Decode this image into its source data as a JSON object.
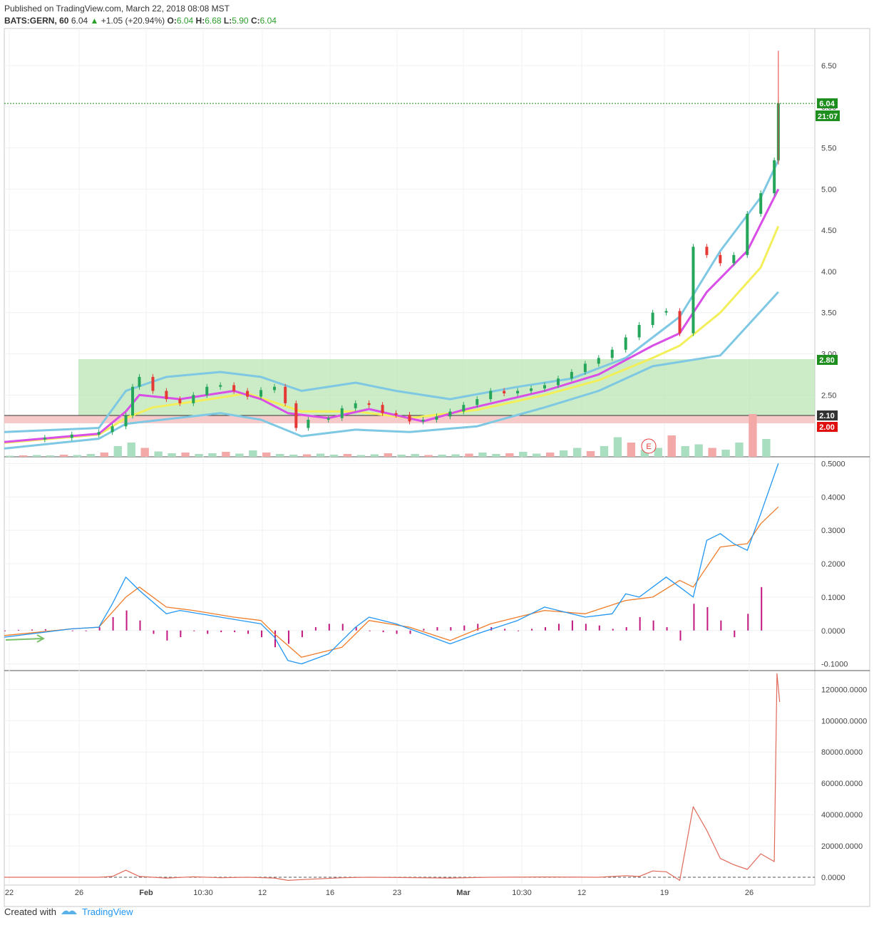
{
  "header": {
    "published": "Published on TradingView.com, March 22, 2018 08:08 MST",
    "symbol": "BATS:GERN, 60",
    "last": "6.04",
    "change_arrow": "▲",
    "change": "+1.05 (+20.94%)",
    "o_label": "O:",
    "o": "6.04",
    "h_label": "H:",
    "h": "6.68",
    "l_label": "L:",
    "l": "5.90",
    "c_label": "C:",
    "c": "6.04"
  },
  "footer": {
    "created_with": "Created with",
    "brand": "TradingView"
  },
  "colors": {
    "up": "#26a65b",
    "down": "#e53935",
    "band": "#7ec8e3",
    "ema_fast": "#d84ee6",
    "ema_slow": "#f2ef5a",
    "zone_green": "#b9e6b4",
    "zone_red": "#f6c1c1",
    "macd": "#2196f3",
    "signal": "#f07c2a",
    "hist": "#c2187f",
    "obv": "#e06a5a"
  },
  "chart_data": [
    {
      "type": "line",
      "name": "price",
      "x_ticks": [
        "22",
        "26",
        "Feb",
        "10:30",
        "12",
        "16",
        "23",
        "Mar",
        "10:30",
        "12",
        "19",
        "26"
      ],
      "y_ticks": [
        "6.50",
        "6.00",
        "5.50",
        "5.00",
        "4.50",
        "4.00",
        "3.50",
        "3.00",
        "2.50"
      ],
      "ylim": [
        1.75,
        6.95
      ],
      "last_price": "6.04",
      "countdown": "21:07",
      "zone_top": "2.80",
      "zone_mid": "2.10",
      "zone_bottom": "2.00",
      "earnings_marker": "E",
      "close_path": [
        [
          0,
          1.96
        ],
        [
          3,
          1.98
        ],
        [
          5,
          2.02
        ],
        [
          7,
          2.05
        ],
        [
          8,
          2.12
        ],
        [
          9,
          2.25
        ],
        [
          9.5,
          2.6
        ],
        [
          10,
          2.72
        ],
        [
          11,
          2.55
        ],
        [
          12,
          2.45
        ],
        [
          13,
          2.4
        ],
        [
          14,
          2.5
        ],
        [
          15,
          2.6
        ],
        [
          16,
          2.62
        ],
        [
          17,
          2.55
        ],
        [
          18,
          2.48
        ],
        [
          19,
          2.56
        ],
        [
          20,
          2.6
        ],
        [
          20.8,
          2.4
        ],
        [
          21.6,
          2.1
        ],
        [
          22.5,
          2.2
        ],
        [
          24,
          2.22
        ],
        [
          25,
          2.34
        ],
        [
          26,
          2.4
        ],
        [
          27,
          2.38
        ],
        [
          28,
          2.28
        ],
        [
          29,
          2.26
        ],
        [
          30,
          2.18
        ],
        [
          31,
          2.2
        ],
        [
          32,
          2.24
        ],
        [
          33,
          2.3
        ],
        [
          34,
          2.38
        ],
        [
          35,
          2.45
        ],
        [
          36,
          2.55
        ],
        [
          37,
          2.52
        ],
        [
          38,
          2.55
        ],
        [
          39,
          2.58
        ],
        [
          40,
          2.62
        ],
        [
          41,
          2.7
        ],
        [
          42,
          2.78
        ],
        [
          43,
          2.88
        ],
        [
          44,
          2.95
        ],
        [
          45,
          3.05
        ],
        [
          46,
          3.2
        ],
        [
          47,
          3.35
        ],
        [
          48,
          3.5
        ],
        [
          49,
          3.52
        ],
        [
          50,
          3.25
        ],
        [
          51,
          4.3
        ],
        [
          52,
          4.2
        ],
        [
          53,
          4.1
        ],
        [
          54,
          4.2
        ],
        [
          55,
          4.7
        ],
        [
          56,
          4.95
        ],
        [
          57,
          5.35
        ],
        [
          57.3,
          6.04
        ]
      ],
      "bands": {
        "upper": [
          [
            0,
            2.05
          ],
          [
            7,
            2.1
          ],
          [
            9,
            2.55
          ],
          [
            12,
            2.72
          ],
          [
            16,
            2.78
          ],
          [
            19,
            2.72
          ],
          [
            22,
            2.55
          ],
          [
            26,
            2.65
          ],
          [
            29,
            2.55
          ],
          [
            33,
            2.45
          ],
          [
            38,
            2.6
          ],
          [
            42,
            2.7
          ],
          [
            46,
            2.95
          ],
          [
            50,
            3.45
          ],
          [
            53,
            4.25
          ],
          [
            56,
            4.9
          ],
          [
            57.3,
            5.35
          ]
        ],
        "lower": [
          [
            0,
            1.85
          ],
          [
            7,
            1.97
          ],
          [
            9,
            2.15
          ],
          [
            16,
            2.28
          ],
          [
            19,
            2.2
          ],
          [
            22,
            2.0
          ],
          [
            26,
            2.08
          ],
          [
            30,
            2.05
          ],
          [
            35,
            2.12
          ],
          [
            40,
            2.35
          ],
          [
            44,
            2.55
          ],
          [
            48,
            2.85
          ],
          [
            53,
            2.98
          ],
          [
            57.3,
            3.75
          ]
        ],
        "ema_fast": [
          [
            0,
            1.93
          ],
          [
            7,
            2.03
          ],
          [
            9,
            2.3
          ],
          [
            10,
            2.5
          ],
          [
            13,
            2.45
          ],
          [
            17,
            2.55
          ],
          [
            19,
            2.45
          ],
          [
            21,
            2.28
          ],
          [
            24,
            2.22
          ],
          [
            27,
            2.33
          ],
          [
            31,
            2.18
          ],
          [
            34,
            2.32
          ],
          [
            40,
            2.55
          ],
          [
            44,
            2.75
          ],
          [
            48,
            3.1
          ],
          [
            50,
            3.25
          ],
          [
            52,
            3.75
          ],
          [
            55,
            4.25
          ],
          [
            57.3,
            5.0
          ]
        ],
        "ema_slow": [
          [
            0,
            1.92
          ],
          [
            7,
            2.02
          ],
          [
            9,
            2.22
          ],
          [
            11,
            2.35
          ],
          [
            14,
            2.42
          ],
          [
            18,
            2.52
          ],
          [
            22,
            2.3
          ],
          [
            26,
            2.3
          ],
          [
            30,
            2.22
          ],
          [
            35,
            2.32
          ],
          [
            40,
            2.5
          ],
          [
            44,
            2.68
          ],
          [
            48,
            2.95
          ],
          [
            50,
            3.1
          ],
          [
            53,
            3.5
          ],
          [
            56,
            4.05
          ],
          [
            57.3,
            4.55
          ]
        ]
      },
      "volume": [
        3,
        4,
        5,
        4,
        6,
        5,
        8,
        12,
        30,
        40,
        25,
        15,
        10,
        12,
        8,
        10,
        14,
        9,
        18,
        12,
        8,
        6,
        7,
        9,
        6,
        8,
        5,
        7,
        10,
        6,
        8,
        5,
        6,
        7,
        9,
        12,
        8,
        10,
        14,
        9,
        12,
        18,
        25,
        16,
        30,
        55,
        40,
        20,
        25,
        60,
        30,
        35,
        25,
        20,
        40,
        120,
        50
      ]
    },
    {
      "type": "line",
      "name": "macd",
      "y_ticks": [
        "0.5000",
        "0.4000",
        "0.3000",
        "0.2000",
        "0.1000",
        "0.0000",
        "-0.1000"
      ],
      "ylim": [
        -0.12,
        0.52
      ],
      "series": [
        {
          "values": [
            [
              0,
              -0.02
            ],
            [
              5,
              0.005
            ],
            [
              7,
              0.01
            ],
            [
              8,
              0.08
            ],
            [
              9,
              0.16
            ],
            [
              10,
              0.12
            ],
            [
              12,
              0.05
            ],
            [
              13,
              0.06
            ],
            [
              16,
              0.04
            ],
            [
              19,
              0.02
            ],
            [
              20,
              -0.02
            ],
            [
              21,
              -0.09
            ],
            [
              22,
              -0.1
            ],
            [
              24,
              -0.07
            ],
            [
              26,
              0.01
            ],
            [
              27,
              0.04
            ],
            [
              29,
              0.02
            ],
            [
              31,
              -0.01
            ],
            [
              33,
              -0.04
            ],
            [
              35,
              -0.01
            ],
            [
              38,
              0.03
            ],
            [
              40,
              0.07
            ],
            [
              43,
              0.04
            ],
            [
              45,
              0.05
            ],
            [
              46,
              0.11
            ],
            [
              47,
              0.1
            ],
            [
              49,
              0.16
            ],
            [
              50,
              0.13
            ],
            [
              51,
              0.1
            ],
            [
              52,
              0.27
            ],
            [
              53,
              0.29
            ],
            [
              54,
              0.26
            ],
            [
              55,
              0.24
            ],
            [
              56,
              0.35
            ],
            [
              57.3,
              0.5
            ]
          ]
        },
        {
          "values": [
            [
              0,
              -0.015
            ],
            [
              5,
              0.005
            ],
            [
              7,
              0.01
            ],
            [
              9,
              0.1
            ],
            [
              10,
              0.13
            ],
            [
              12,
              0.07
            ],
            [
              14,
              0.06
            ],
            [
              17,
              0.04
            ],
            [
              19,
              0.03
            ],
            [
              20,
              -0.01
            ],
            [
              22,
              -0.08
            ],
            [
              25,
              -0.05
            ],
            [
              27,
              0.03
            ],
            [
              30,
              0.01
            ],
            [
              33,
              -0.03
            ],
            [
              36,
              0.02
            ],
            [
              40,
              0.06
            ],
            [
              43,
              0.05
            ],
            [
              46,
              0.09
            ],
            [
              48,
              0.1
            ],
            [
              50,
              0.15
            ],
            [
              51,
              0.13
            ],
            [
              53,
              0.25
            ],
            [
              55,
              0.26
            ],
            [
              56,
              0.32
            ],
            [
              57.3,
              0.37
            ]
          ]
        }
      ],
      "histogram": [
        0,
        0.002,
        0.003,
        0.004,
        0.002,
        0,
        0,
        0.01,
        0.04,
        0.06,
        0.03,
        -0.01,
        -0.03,
        -0.02,
        0,
        -0.01,
        -0.005,
        -0.005,
        -0.01,
        -0.02,
        -0.05,
        -0.04,
        -0.02,
        0.01,
        0.02,
        0.02,
        0.01,
        0,
        -0.005,
        -0.01,
        -0.01,
        0.005,
        0.01,
        0.01,
        0.015,
        0.02,
        0.01,
        0.005,
        0,
        0.005,
        0.01,
        0.02,
        0.03,
        0.02,
        0.015,
        0.005,
        0.01,
        0.04,
        0.03,
        0.01,
        -0.03,
        0.08,
        0.07,
        0.03,
        -0.02,
        0.05,
        0.13
      ]
    },
    {
      "type": "line",
      "name": "obv",
      "y_ticks": [
        "120000.0000",
        "100000.0000",
        "80000.0000",
        "60000.0000",
        "40000.0000",
        "20000.0000",
        "0.0000"
      ],
      "ylim": [
        -5000,
        132000
      ],
      "values": [
        [
          0,
          0
        ],
        [
          7,
          0
        ],
        [
          8,
          500
        ],
        [
          9,
          4500
        ],
        [
          10,
          500
        ],
        [
          12,
          -500
        ],
        [
          14,
          300
        ],
        [
          16,
          -300
        ],
        [
          18,
          0
        ],
        [
          20,
          -500
        ],
        [
          21,
          -2000
        ],
        [
          22,
          -1500
        ],
        [
          25,
          -300
        ],
        [
          27,
          0
        ],
        [
          30,
          -200
        ],
        [
          33,
          -500
        ],
        [
          36,
          0
        ],
        [
          40,
          200
        ],
        [
          44,
          0
        ],
        [
          46,
          1000
        ],
        [
          47,
          500
        ],
        [
          48,
          4000
        ],
        [
          49,
          3500
        ],
        [
          50,
          -2000
        ],
        [
          51,
          45000
        ],
        [
          52,
          30000
        ],
        [
          53,
          12000
        ],
        [
          54,
          8000
        ],
        [
          55,
          5000
        ],
        [
          56,
          15000
        ],
        [
          57,
          10000
        ],
        [
          57.2,
          130000
        ],
        [
          57.4,
          112000
        ]
      ]
    }
  ]
}
